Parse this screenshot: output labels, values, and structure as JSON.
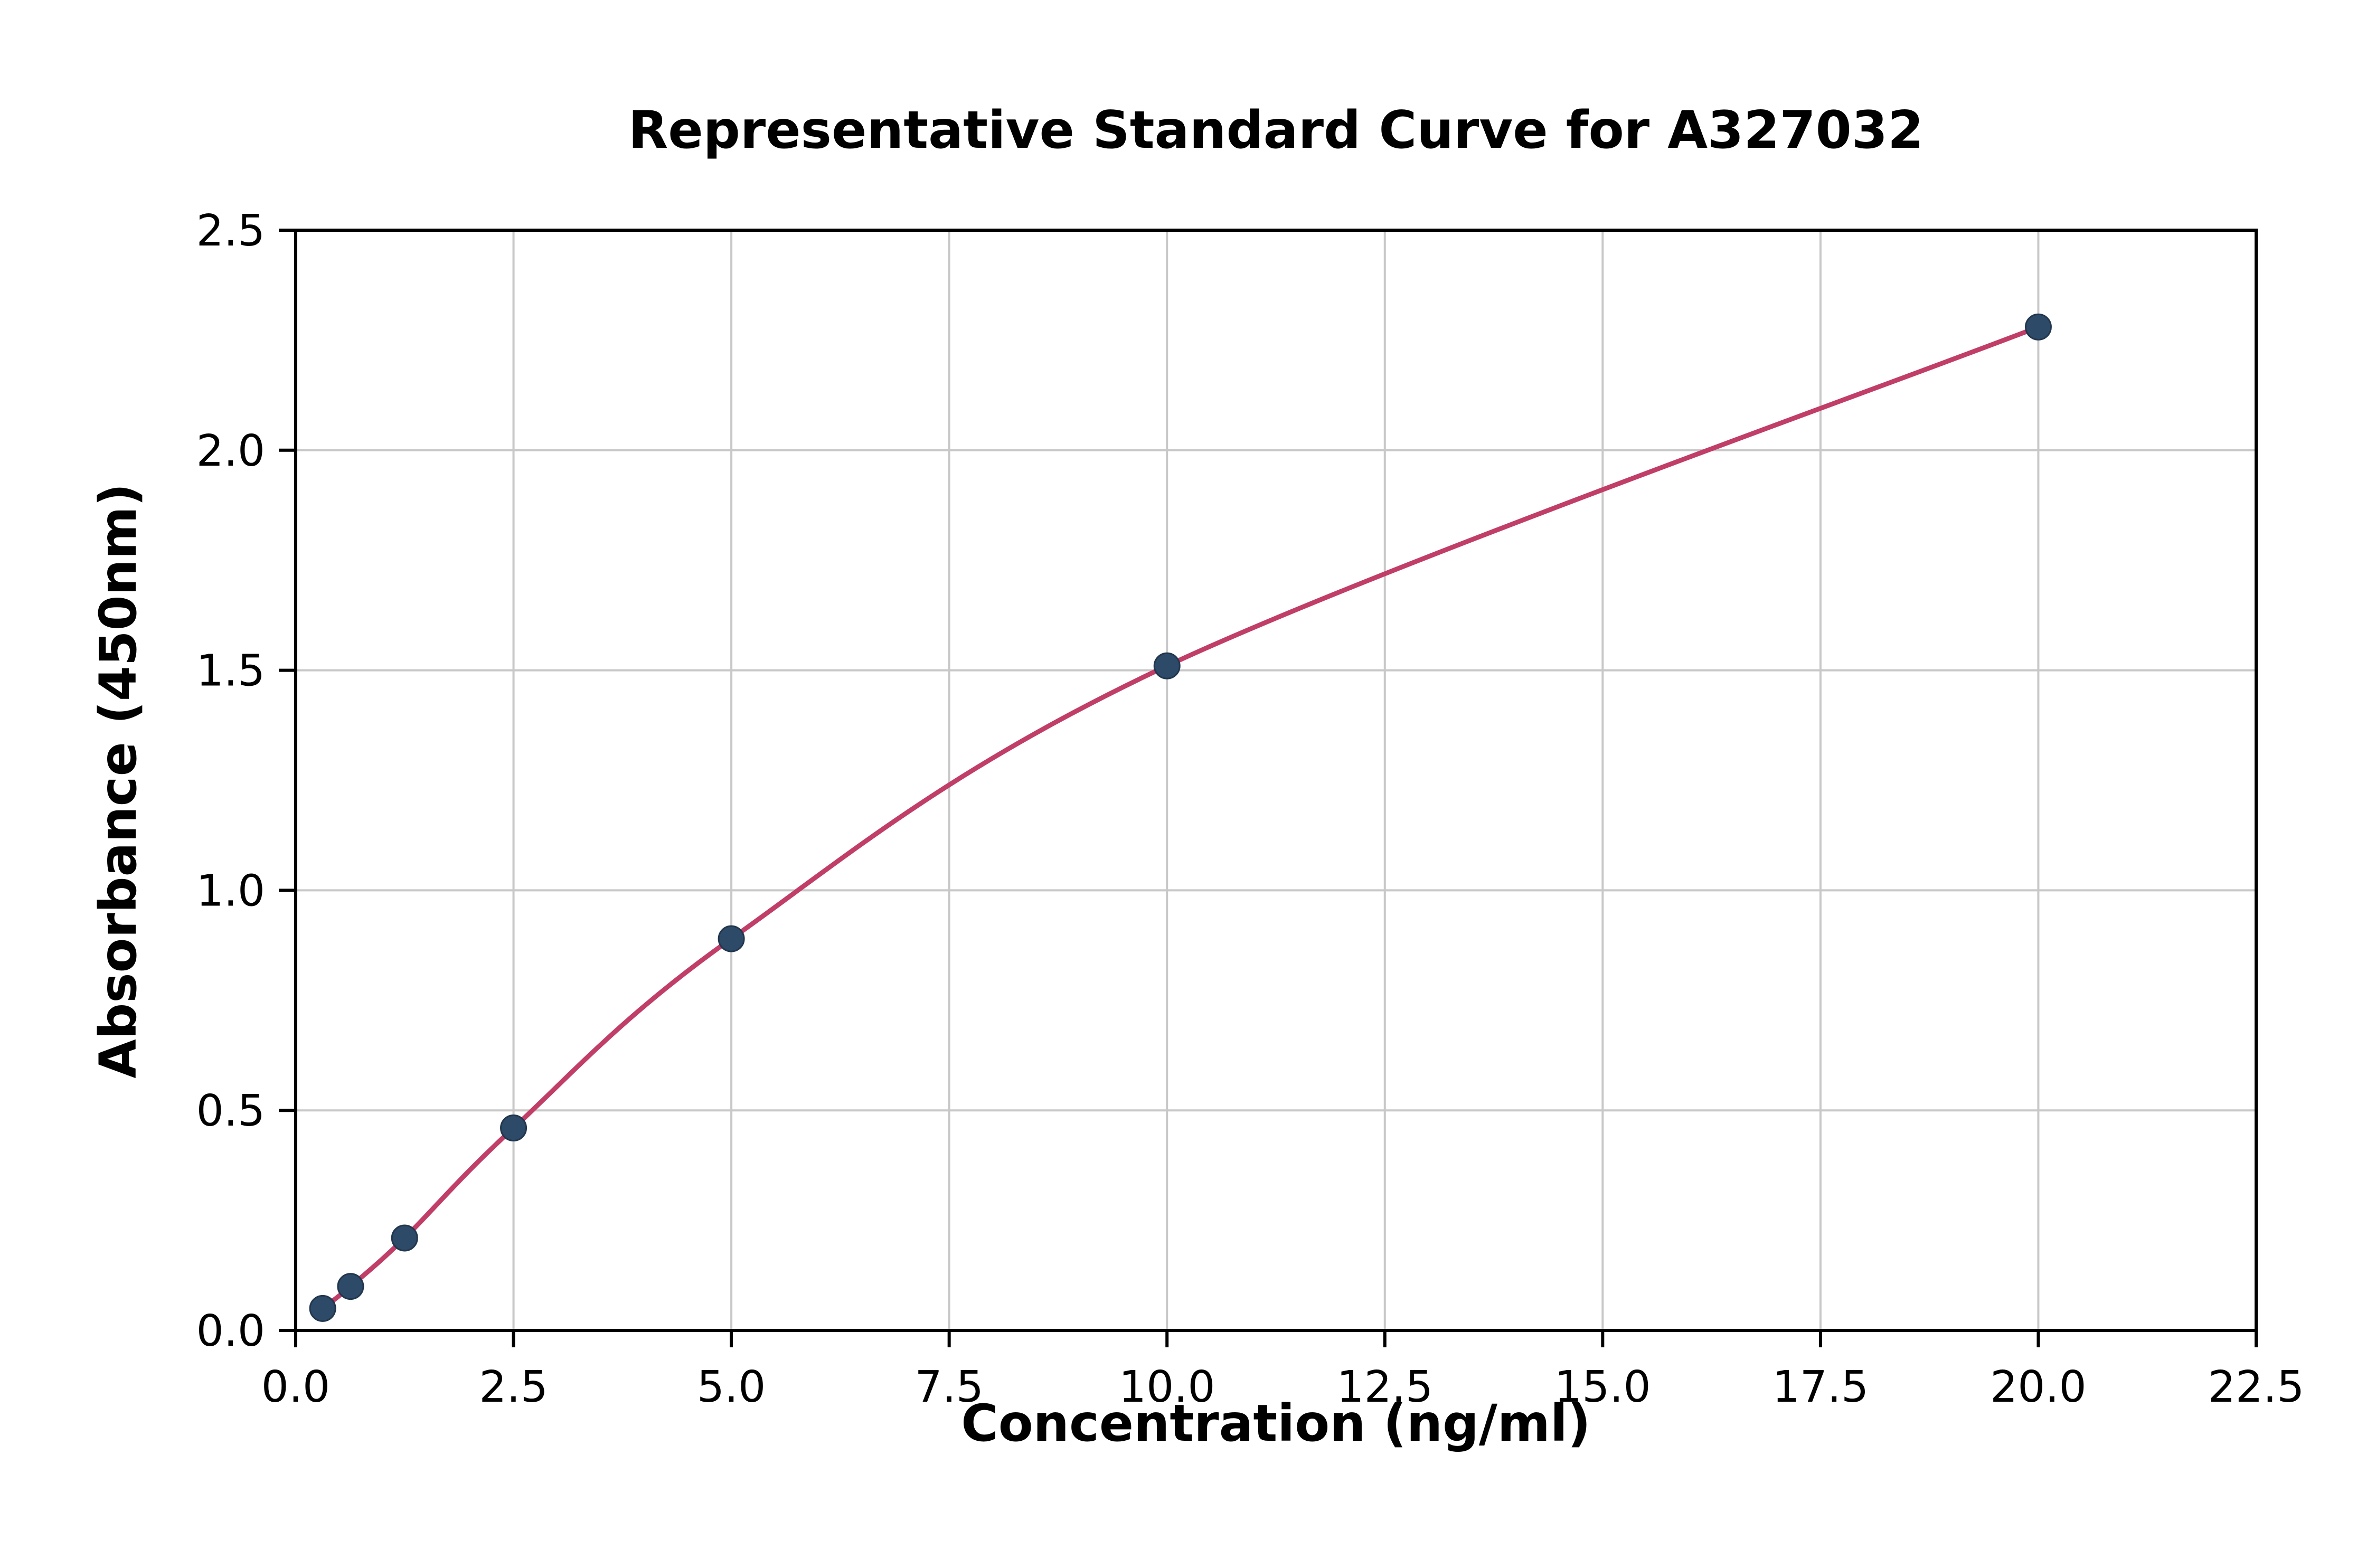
{
  "chart_data": {
    "type": "scatter",
    "title": "Representative Standard Curve for A327032",
    "xlabel": "Concentration (ng/ml)",
    "ylabel": "Absorbance (450nm)",
    "x": [
      0.31,
      0.63,
      1.25,
      2.5,
      5.0,
      10.0,
      20.0
    ],
    "y": [
      0.05,
      0.1,
      0.21,
      0.46,
      0.89,
      1.51,
      2.28
    ],
    "xlim": [
      0,
      22.5
    ],
    "ylim": [
      0,
      2.5
    ],
    "x_ticks": [
      0.0,
      2.5,
      5.0,
      7.5,
      10.0,
      12.5,
      15.0,
      17.5,
      20.0,
      22.5
    ],
    "x_tick_labels": [
      "0.0",
      "2.5",
      "5.0",
      "7.5",
      "10.0",
      "12.5",
      "15.0",
      "17.5",
      "20.0",
      "22.5"
    ],
    "y_ticks": [
      0.0,
      0.5,
      1.0,
      1.5,
      2.0,
      2.5
    ],
    "y_tick_labels": [
      "0.0",
      "0.5",
      "1.0",
      "1.5",
      "2.0",
      "2.5"
    ],
    "grid": true,
    "legend": "none",
    "colors": {
      "curve": "#c03e68",
      "marker": "#2d4a68",
      "marker_edge": "#22374e",
      "grid": "#c8c8c8",
      "axis": "#000000",
      "background": "#ffffff",
      "text": "#000000"
    }
  }
}
